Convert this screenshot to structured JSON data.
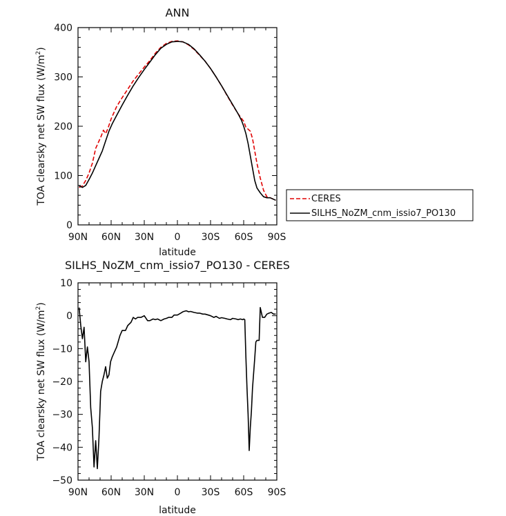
{
  "chart_data": [
    {
      "type": "line",
      "title": "ANN",
      "xlabel": "latitude",
      "ylabel": "TOA clearsky net SW flux (W/m²)",
      "ylabel_parts": {
        "main": "TOA clearsky net SW flux (W/m",
        "sup": "2",
        "close": ")"
      },
      "xlim": [
        90,
        -90
      ],
      "ylim": [
        0,
        400
      ],
      "xticks": [
        90,
        60,
        30,
        0,
        -30,
        -60,
        -90
      ],
      "xtick_labels": [
        "90N",
        "60N",
        "30N",
        "0",
        "30S",
        "60S",
        "90S"
      ],
      "yticks": [
        0,
        100,
        200,
        300,
        400
      ],
      "ytick_labels": [
        "0",
        "100",
        "200",
        "300",
        "400"
      ],
      "legend": {
        "placement": "right",
        "entries": [
          "CERES",
          "SILHS_NoZM_cnm_issio7_PO130"
        ]
      },
      "series": [
        {
          "name": "CERES",
          "color": "#e00000",
          "dash": "dashed",
          "x": [
            89,
            86,
            83,
            80,
            77,
            74,
            71,
            69,
            67,
            65,
            63,
            60,
            55,
            50,
            45,
            40,
            35,
            30,
            25,
            20,
            15,
            10,
            5,
            0,
            -5,
            -10,
            -15,
            -20,
            -25,
            -30,
            -35,
            -40,
            -45,
            -50,
            -55,
            -60,
            -62,
            -64,
            -66,
            -68,
            -70,
            -72,
            -75,
            -78,
            -81,
            -84,
            -87,
            -89
          ],
          "y": [
            76,
            79,
            90,
            105,
            125,
            155,
            170,
            180,
            192,
            185,
            195,
            215,
            240,
            258,
            275,
            292,
            306,
            320,
            333,
            348,
            360,
            368,
            372,
            373,
            371,
            365,
            356,
            344,
            332,
            317,
            300,
            282,
            262,
            243,
            225,
            210,
            198,
            194,
            190,
            175,
            150,
            125,
            95,
            70,
            57,
            55,
            52,
            50
          ]
        },
        {
          "name": "SILHS_NoZM_cnm_issio7_PO130",
          "color": "#000000",
          "dash": "solid",
          "x": [
            89,
            86,
            83,
            80,
            77,
            74,
            71,
            68,
            65,
            62,
            59,
            55,
            50,
            45,
            40,
            35,
            30,
            25,
            20,
            15,
            10,
            5,
            0,
            -5,
            -10,
            -15,
            -20,
            -25,
            -30,
            -35,
            -40,
            -45,
            -50,
            -55,
            -58,
            -60,
            -62,
            -64,
            -66,
            -68,
            -70,
            -72,
            -75,
            -78,
            -81,
            -84,
            -87,
            -89
          ],
          "y": [
            79,
            76,
            80,
            92,
            105,
            120,
            135,
            150,
            170,
            190,
            205,
            222,
            243,
            263,
            282,
            299,
            315,
            330,
            345,
            358,
            366,
            371,
            372,
            371,
            366,
            357,
            345,
            332,
            317,
            300,
            282,
            263,
            244,
            225,
            212,
            200,
            185,
            165,
            140,
            115,
            90,
            75,
            65,
            57,
            55,
            55,
            52,
            50
          ]
        }
      ]
    },
    {
      "type": "line",
      "title": "SILHS_NoZM_cnm_issio7_PO130 - CERES",
      "xlabel": "latitude",
      "ylabel": "TOA clearsky net SW flux (W/m²)",
      "ylabel_parts": {
        "main": "TOA clearsky net SW flux (W/m",
        "sup": "2",
        "close": ")"
      },
      "xlim": [
        90,
        -90
      ],
      "ylim": [
        -50,
        10
      ],
      "xticks": [
        90,
        60,
        30,
        0,
        -30,
        -60,
        -90
      ],
      "xtick_labels": [
        "90N",
        "60N",
        "30N",
        "0",
        "30S",
        "60S",
        "90S"
      ],
      "yticks": [
        10,
        0,
        -10,
        -20,
        -30,
        -40,
        -50
      ],
      "ytick_labels": [
        "10",
        "0",
        "−10",
        "−20",
        "−30",
        "−40",
        "−50"
      ],
      "series": [
        {
          "name": "",
          "color": "#000000",
          "dash": "solid",
          "x": [
            89,
            87.5,
            86,
            84.5,
            83,
            81.5,
            80,
            78.5,
            77,
            75.5,
            74,
            72.5,
            71,
            69.5,
            68,
            66.5,
            65,
            63.5,
            62,
            60.5,
            59,
            57,
            55,
            52,
            50,
            47,
            45,
            42,
            40,
            38,
            36,
            33,
            30,
            27,
            25,
            22,
            20,
            18,
            15,
            12,
            10,
            8,
            5,
            3,
            0,
            -3,
            -5,
            -8,
            -10,
            -12,
            -15,
            -18,
            -20,
            -23,
            -25,
            -28,
            -30,
            -33,
            -35,
            -38,
            -40,
            -43,
            -45,
            -48,
            -50,
            -53,
            -55,
            -57,
            -59,
            -60,
            -61,
            -62,
            -63,
            -64,
            -65,
            -66,
            -67,
            -68,
            -69,
            -70,
            -71,
            -72,
            -74,
            -75,
            -77,
            -79,
            -81,
            -83,
            -85,
            -87,
            -89
          ],
          "y": [
            2.5,
            -3,
            -7,
            -3.5,
            -14,
            -9.5,
            -14,
            -28,
            -34,
            -46,
            -38,
            -46.5,
            -37,
            -23,
            -20,
            -18,
            -15.5,
            -19,
            -18,
            -14,
            -12.5,
            -11,
            -9.5,
            -6,
            -4.5,
            -4.5,
            -3,
            -2,
            -0.5,
            -1,
            -0.5,
            -0.5,
            0,
            -1.5,
            -1.5,
            -1,
            -1.2,
            -1,
            -1.5,
            -1,
            -0.8,
            -0.5,
            -0.5,
            0.2,
            0.2,
            0.8,
            1.2,
            1.5,
            1.2,
            1.3,
            1.0,
            0.8,
            0.8,
            0.5,
            0.5,
            0.2,
            0,
            -0.5,
            -0.2,
            -0.8,
            -0.6,
            -0.8,
            -1,
            -1.2,
            -0.8,
            -1.0,
            -1.2,
            -1.0,
            -1.2,
            -1.0,
            -1.2,
            -12.5,
            -22,
            -30,
            -41,
            -34,
            -29,
            -22,
            -17.5,
            -13,
            -8,
            -7.5,
            -7.5,
            2.5,
            -0.5,
            -0.5,
            0.5,
            0.8,
            1.0,
            0.5,
            0.5
          ]
        }
      ]
    }
  ]
}
